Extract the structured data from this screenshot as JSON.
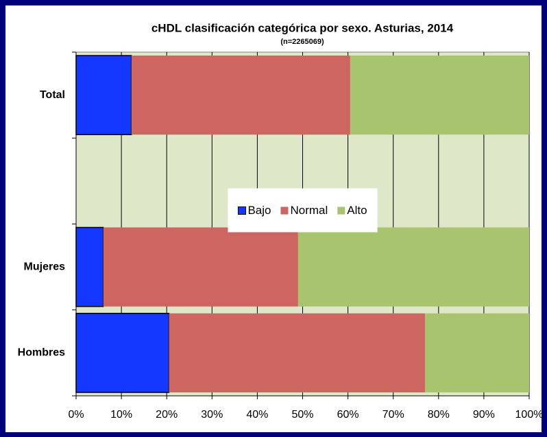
{
  "chart_data": {
    "type": "stacked-barh",
    "title": "cHDL clasificación categórica por sexo. Asturias, 2014",
    "subtitle": "(n=2265069)",
    "categories": [
      "Total",
      null,
      "Mujeres",
      "Hombres"
    ],
    "series": [
      {
        "name": "Bajo",
        "color": "#1438ff",
        "values": [
          12.2,
          null,
          6,
          20.5
        ]
      },
      {
        "name": "Normal",
        "color": "#cd6660",
        "values": [
          48.3,
          null,
          43,
          56.5
        ]
      },
      {
        "name": "Alto",
        "color": "#a9c46f",
        "values": [
          39.5,
          null,
          51,
          23
        ]
      }
    ],
    "xlim": [
      0,
      100
    ],
    "xticks": [
      {
        "value": 0,
        "label": "0%"
      },
      {
        "value": 10,
        "label": "10%"
      },
      {
        "value": 20,
        "label": "20%"
      },
      {
        "value": 30,
        "label": "30%"
      },
      {
        "value": 40,
        "label": "40%"
      },
      {
        "value": 50,
        "label": "50%"
      },
      {
        "value": 60,
        "label": "60%"
      },
      {
        "value": 70,
        "label": "70%"
      },
      {
        "value": 80,
        "label": "80%"
      },
      {
        "value": 90,
        "label": "90%"
      },
      {
        "value": 100,
        "label": "100%"
      }
    ],
    "grid": true,
    "legend": "center"
  }
}
